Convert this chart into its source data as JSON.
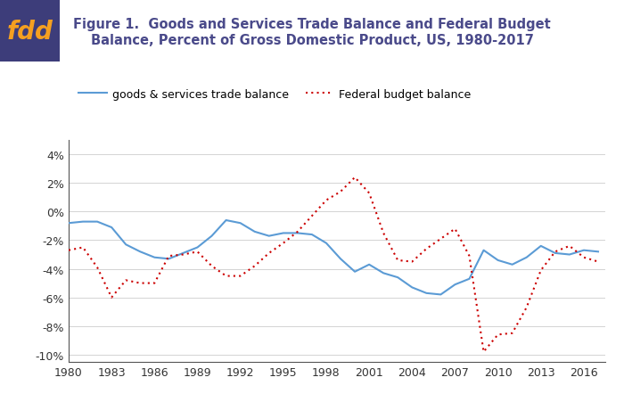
{
  "title": "Figure 1.  Goods and Services Trade Balance and Federal Budget\nBalance, Percent of Gross Domestic Product, US, 1980-2017",
  "title_color": "#4a4a8a",
  "fdd_bg_color": "#3d3d7a",
  "fdd_text_color": "#f5a020",
  "legend_label_trade": "goods & services trade balance",
  "legend_label_budget": "Federal budget balance",
  "trade_color": "#5b9bd5",
  "budget_color": "#cc0000",
  "ylim": [
    -10.5,
    5
  ],
  "yticks": [
    -10,
    -8,
    -6,
    -4,
    -2,
    0,
    2,
    4
  ],
  "ytick_labels": [
    "-10%",
    "-8%",
    "-6%",
    "-4%",
    "-2%",
    "0%",
    "2%",
    "4%"
  ],
  "xticks": [
    1980,
    1983,
    1986,
    1989,
    1992,
    1995,
    1998,
    2001,
    2004,
    2007,
    2010,
    2013,
    2016
  ],
  "years": [
    1980,
    1981,
    1982,
    1983,
    1984,
    1985,
    1986,
    1987,
    1988,
    1989,
    1990,
    1991,
    1992,
    1993,
    1994,
    1995,
    1996,
    1997,
    1998,
    1999,
    2000,
    2001,
    2002,
    2003,
    2004,
    2005,
    2006,
    2007,
    2008,
    2009,
    2010,
    2011,
    2012,
    2013,
    2014,
    2015,
    2016,
    2017
  ],
  "trade_balance": [
    -0.8,
    -0.7,
    -0.7,
    -1.1,
    -2.3,
    -2.8,
    -3.2,
    -3.3,
    -2.9,
    -2.5,
    -1.7,
    -0.6,
    -0.8,
    -1.4,
    -1.7,
    -1.5,
    -1.5,
    -1.6,
    -2.2,
    -3.3,
    -4.2,
    -3.7,
    -4.3,
    -4.6,
    -5.3,
    -5.7,
    -5.8,
    -5.1,
    -4.7,
    -2.7,
    -3.4,
    -3.7,
    -3.2,
    -2.4,
    -2.9,
    -3.0,
    -2.7,
    -2.8
  ],
  "budget_balance": [
    -2.7,
    -2.5,
    -3.9,
    -6.0,
    -4.8,
    -5.0,
    -5.0,
    -3.1,
    -3.0,
    -2.8,
    -3.8,
    -4.5,
    -4.5,
    -3.8,
    -2.9,
    -2.2,
    -1.4,
    -0.3,
    0.8,
    1.4,
    2.4,
    1.3,
    -1.5,
    -3.4,
    -3.5,
    -2.6,
    -1.9,
    -1.2,
    -3.1,
    -9.8,
    -8.6,
    -8.5,
    -6.7,
    -4.1,
    -2.8,
    -2.4,
    -3.2,
    -3.5
  ],
  "fig_width": 7.0,
  "fig_height": 4.52,
  "dpi": 100
}
